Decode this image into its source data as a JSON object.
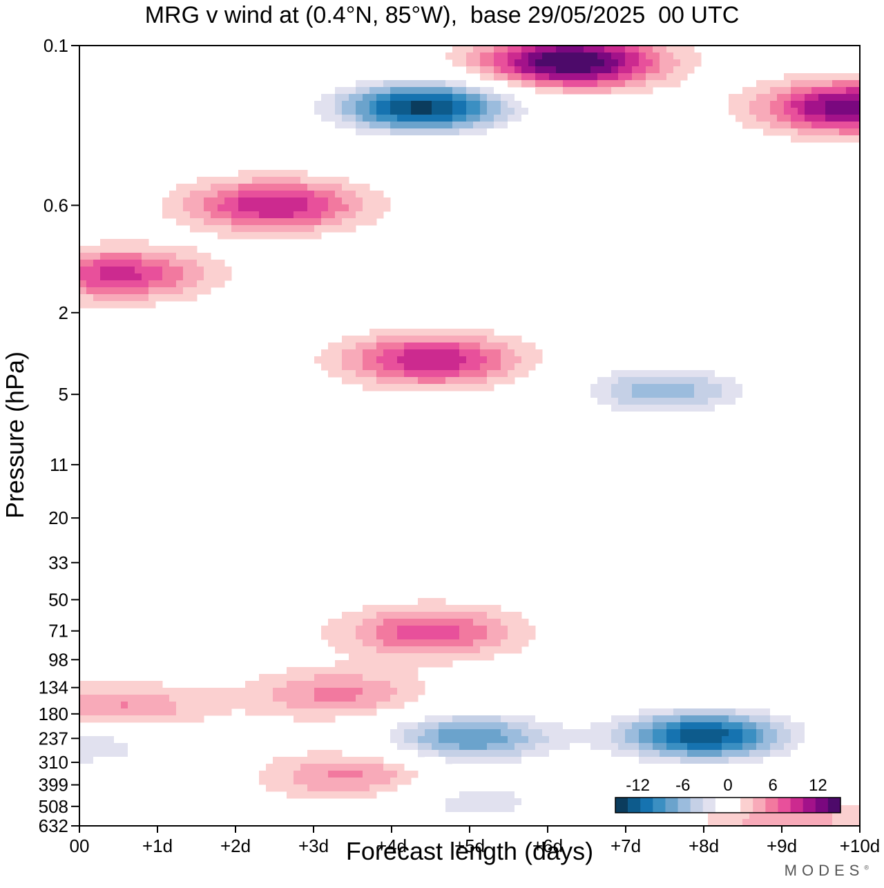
{
  "chart_data": {
    "type": "heatmap",
    "title": "MRG v wind at (0.4°N, 85°W),  base 29/05/2025  00 UTC",
    "xlabel": "Forecast length (days)",
    "ylabel": "Pressure (hPa)",
    "x_ticks": [
      "00",
      "+1d",
      "+2d",
      "+3d",
      "+4d",
      "+5d",
      "+6d",
      "+7d",
      "+8d",
      "+9d",
      "+10d"
    ],
    "xlim": [
      0,
      10
    ],
    "y_ticks": [
      "0.1",
      "0.6",
      "2",
      "5",
      "11",
      "20",
      "33",
      "50",
      "71",
      "98",
      "134",
      "180",
      "237",
      "310",
      "399",
      "508",
      "632"
    ],
    "y_scale": "log pressure, increasing downward",
    "colorbar": {
      "tick_labels": [
        "-12",
        "-6",
        "0",
        "6",
        "12"
      ],
      "tick_values": [
        -12,
        -6,
        0,
        6,
        12
      ],
      "levels": [
        -15,
        -13.5,
        -12,
        -10.5,
        -9,
        -7.5,
        -6,
        -4.5,
        -3,
        -1.5,
        1.5,
        3,
        4.5,
        6,
        7.5,
        9,
        10.5,
        12,
        13.5
      ],
      "colors": [
        "#0b3c5d",
        "#0d5b8c",
        "#1673b0",
        "#3b8fc2",
        "#6ba3cc",
        "#9bbcdd",
        "#c5d0e6",
        "#e1e1ef",
        "#ffffff",
        "#ffffff",
        "#fbd0d0",
        "#f8aab9",
        "#f2799f",
        "#e8509b",
        "#cc2a8f",
        "#a3128a",
        "#7a087f",
        "#4d0a6a"
      ]
    },
    "features": [
      {
        "x": 4.4,
        "p": 0.2,
        "v": -14
      },
      {
        "x": 6.3,
        "p": 0.12,
        "v": 14
      },
      {
        "x": 9.9,
        "p": 0.2,
        "v": 12
      },
      {
        "x": 2.5,
        "p": 0.6,
        "v": 9
      },
      {
        "x": 0.5,
        "p": 1.3,
        "v": 8
      },
      {
        "x": 4.5,
        "p": 3.4,
        "v": 9
      },
      {
        "x": 7.5,
        "p": 4.8,
        "v": -7
      },
      {
        "x": 4.5,
        "p": 72,
        "v": 7
      },
      {
        "x": 3.3,
        "p": 145,
        "v": 5
      },
      {
        "x": 0.5,
        "p": 170,
        "v": 5
      },
      {
        "x": 8.0,
        "p": 230,
        "v": -13
      },
      {
        "x": 5.0,
        "p": 235,
        "v": -9
      },
      {
        "x": 0.0,
        "p": 250,
        "v": -5
      },
      {
        "x": 3.5,
        "p": 360,
        "v": 5
      },
      {
        "x": 5.1,
        "p": 480,
        "v": -4
      },
      {
        "x": 9.1,
        "p": 600,
        "v": 4
      }
    ]
  },
  "brand": {
    "name": "MODES",
    "mark": "®"
  }
}
